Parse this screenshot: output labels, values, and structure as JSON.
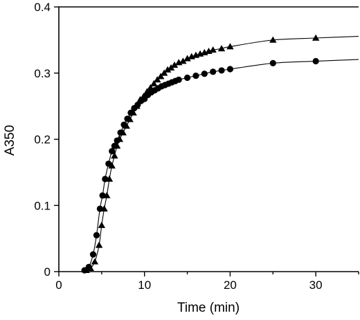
{
  "chart_data": {
    "type": "scatter",
    "title": "",
    "xlabel": "Time (min)",
    "ylabel": "A350",
    "xlim": [
      0,
      35
    ],
    "ylim": [
      0,
      0.4
    ],
    "x_ticks": [
      0,
      10,
      20,
      30
    ],
    "y_ticks": [
      0,
      0.1,
      0.2,
      0.3,
      0.4
    ],
    "x_tick_labels": [
      "0",
      "10",
      "20",
      "30"
    ],
    "y_tick_labels": [
      "0",
      "0.1",
      "0.2",
      "0.3",
      "0.4"
    ],
    "grid": false,
    "legend": "none",
    "series": [
      {
        "marker": "triangle",
        "x": [
          3.2,
          3.7,
          4.2,
          4.7,
          5.0,
          5.3,
          5.6,
          5.9,
          6.2,
          6.5,
          6.8,
          7.1,
          7.5,
          7.9,
          8.3,
          8.7,
          9.1,
          9.5,
          9.9,
          10.3,
          10.7,
          11.1,
          11.5,
          11.9,
          12.3,
          12.7,
          13.1,
          13.5,
          14.0,
          14.5,
          15.0,
          15.5,
          16.0,
          16.5,
          17.0,
          17.5,
          18.0,
          19.0,
          20.0,
          25.0,
          30.0
        ],
        "y": [
          0.002,
          0.005,
          0.015,
          0.04,
          0.07,
          0.095,
          0.115,
          0.14,
          0.16,
          0.175,
          0.19,
          0.2,
          0.21,
          0.22,
          0.23,
          0.24,
          0.25,
          0.26,
          0.265,
          0.272,
          0.278,
          0.284,
          0.29,
          0.295,
          0.3,
          0.305,
          0.308,
          0.312,
          0.316,
          0.318,
          0.322,
          0.325,
          0.327,
          0.329,
          0.331,
          0.333,
          0.335,
          0.337,
          0.34,
          0.35,
          0.353
        ]
      },
      {
        "marker": "circle",
        "x": [
          3.0,
          3.5,
          4.0,
          4.4,
          4.8,
          5.1,
          5.4,
          5.8,
          6.2,
          6.5,
          6.8,
          7.2,
          7.6,
          8.0,
          8.4,
          8.8,
          9.2,
          9.6,
          10.0,
          10.4,
          10.8,
          11.2,
          11.6,
          12.0,
          12.4,
          12.8,
          13.2,
          13.6,
          14.0,
          15.0,
          16.0,
          17.0,
          18.0,
          19.0,
          20.0,
          25.0,
          30.0
        ],
        "y": [
          0.002,
          0.007,
          0.026,
          0.055,
          0.095,
          0.115,
          0.14,
          0.163,
          0.182,
          0.19,
          0.198,
          0.21,
          0.222,
          0.231,
          0.24,
          0.247,
          0.252,
          0.258,
          0.261,
          0.267,
          0.271,
          0.274,
          0.277,
          0.28,
          0.282,
          0.284,
          0.286,
          0.288,
          0.29,
          0.293,
          0.296,
          0.299,
          0.302,
          0.304,
          0.306,
          0.315,
          0.318
        ]
      }
    ]
  }
}
